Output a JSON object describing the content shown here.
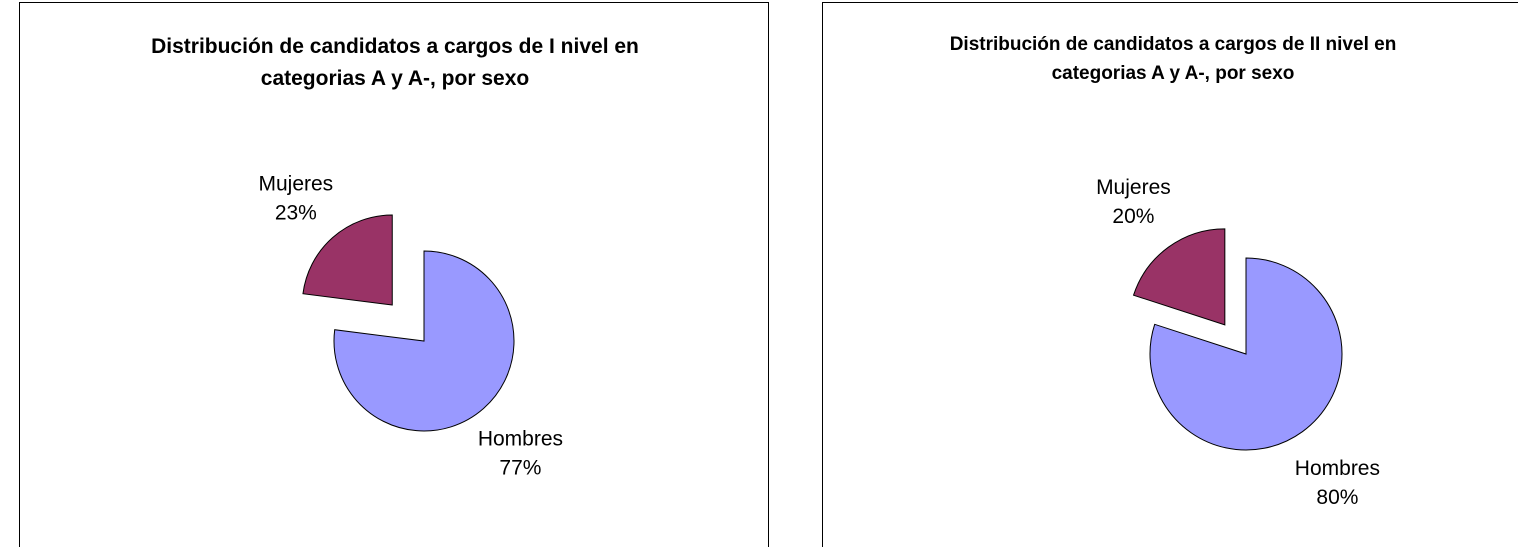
{
  "chart_data": [
    {
      "type": "pie",
      "title": "Distribución de candidatos a cargos de I nivel en categorias A y A-, por sexo",
      "categories": [
        "Hombres",
        "Mujeres"
      ],
      "values": [
        77,
        23
      ],
      "value_labels": [
        "77%",
        "23%"
      ],
      "colors": [
        "#9999ff",
        "#993366"
      ]
    },
    {
      "type": "pie",
      "title": "Distribución de candidatos a cargos de II nivel en categorias A y A-, por sexo",
      "categories": [
        "Hombres",
        "Mujeres"
      ],
      "values": [
        80,
        20
      ],
      "value_labels": [
        "80%",
        "20%"
      ],
      "colors": [
        "#9999ff",
        "#993366"
      ]
    }
  ]
}
